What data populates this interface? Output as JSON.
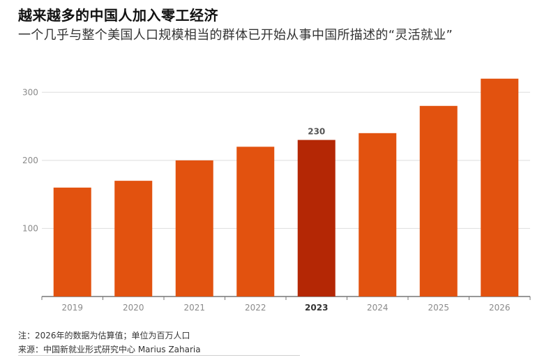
{
  "chart_data": {
    "type": "bar",
    "title": "越来越多的中国人加入零工经济",
    "subtitle": "一个几乎与整个美国人口规模相当的群体已开始从事中国所描述的“灵活就业”",
    "categories": [
      "2019",
      "2020",
      "2021",
      "2022",
      "2023",
      "2024",
      "2025",
      "2026"
    ],
    "values": [
      160,
      170,
      200,
      220,
      230,
      240,
      280,
      320
    ],
    "highlight": {
      "category": "2023",
      "label": "230"
    },
    "yticks": [
      100,
      200,
      300
    ],
    "ylim": [
      0,
      330
    ],
    "grid": true,
    "colors": {
      "bar": "#E2520F",
      "highlight": "#B42705",
      "grid": "#dedede",
      "axis": "#777777",
      "tick_text": "#8a8a8a"
    }
  },
  "footer": {
    "note": "注：2026年的数据为估算值；单位为百万人口",
    "source": "来源：中国新就业形式研究中心 Marius Zaharia"
  }
}
